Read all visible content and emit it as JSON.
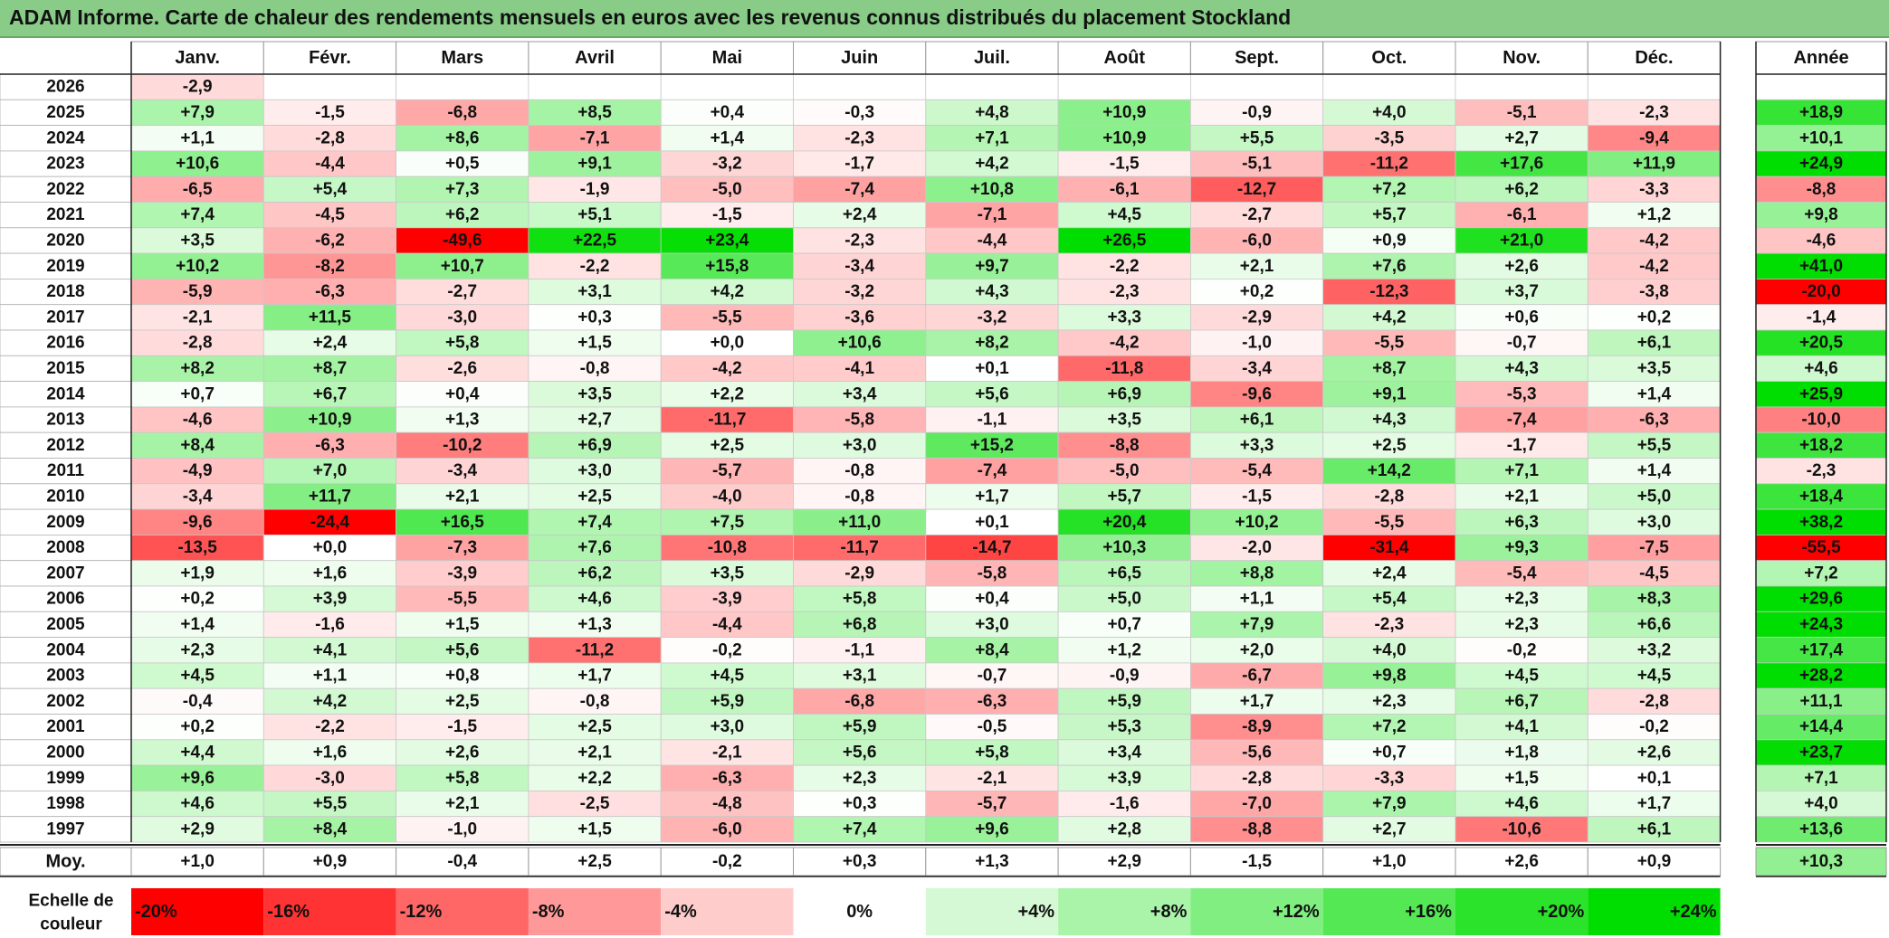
{
  "title": "ADAM Informe. Carte de chaleur des rendements mensuels en euros avec les revenus connus distribués du placement Stockland",
  "chart_data": {
    "type": "heatmap",
    "months": [
      "Janv.",
      "Févr.",
      "Mars",
      "Avril",
      "Mai",
      "Juin",
      "Juil.",
      "Août",
      "Sept.",
      "Oct.",
      "Nov.",
      "Déc."
    ],
    "annual_label": "Année",
    "rows": [
      {
        "year": "2026",
        "values": [
          -2.9,
          null,
          null,
          null,
          null,
          null,
          null,
          null,
          null,
          null,
          null,
          null
        ],
        "annual": null
      },
      {
        "year": "2025",
        "values": [
          7.9,
          -1.5,
          -6.8,
          8.5,
          0.4,
          -0.3,
          4.8,
          10.9,
          -0.9,
          4.0,
          -5.1,
          -2.3
        ],
        "annual": 18.9
      },
      {
        "year": "2024",
        "values": [
          1.1,
          -2.8,
          8.6,
          -7.1,
          1.4,
          -2.3,
          7.1,
          10.9,
          5.5,
          -3.5,
          2.7,
          -9.4
        ],
        "annual": 10.1
      },
      {
        "year": "2023",
        "values": [
          10.6,
          -4.4,
          0.5,
          9.1,
          -3.2,
          -1.7,
          4.2,
          -1.5,
          -5.1,
          -11.2,
          17.6,
          11.9
        ],
        "annual": 24.9
      },
      {
        "year": "2022",
        "values": [
          -6.5,
          5.4,
          7.3,
          -1.9,
          -5.0,
          -7.4,
          10.8,
          -6.1,
          -12.7,
          7.2,
          6.2,
          -3.3
        ],
        "annual": -8.8
      },
      {
        "year": "2021",
        "values": [
          7.4,
          -4.5,
          6.2,
          5.1,
          -1.5,
          2.4,
          -7.1,
          4.5,
          -2.7,
          5.7,
          -6.1,
          1.2
        ],
        "annual": 9.8
      },
      {
        "year": "2020",
        "values": [
          3.5,
          -6.2,
          -49.6,
          22.5,
          23.4,
          -2.3,
          -4.4,
          26.5,
          -6.0,
          0.9,
          21.0,
          -4.2
        ],
        "annual": -4.6
      },
      {
        "year": "2019",
        "values": [
          10.2,
          -8.2,
          10.7,
          -2.2,
          15.8,
          -3.4,
          9.7,
          -2.2,
          2.1,
          7.6,
          2.6,
          -4.2
        ],
        "annual": 41.0
      },
      {
        "year": "2018",
        "values": [
          -5.9,
          -6.3,
          -2.7,
          3.1,
          4.2,
          -3.2,
          4.3,
          -2.3,
          0.2,
          -12.3,
          3.7,
          -3.8
        ],
        "annual": -20.0
      },
      {
        "year": "2017",
        "values": [
          -2.1,
          11.5,
          -3.0,
          0.3,
          -5.5,
          -3.6,
          -3.2,
          3.3,
          -2.9,
          4.2,
          0.6,
          0.2
        ],
        "annual": -1.4
      },
      {
        "year": "2016",
        "values": [
          -2.8,
          2.4,
          5.8,
          1.5,
          0.0,
          10.6,
          8.2,
          -4.2,
          -1.0,
          -5.5,
          -0.7,
          6.1
        ],
        "annual": 20.5
      },
      {
        "year": "2015",
        "values": [
          8.2,
          8.7,
          -2.6,
          -0.8,
          -4.2,
          -4.1,
          0.1,
          -11.8,
          -3.4,
          8.7,
          4.3,
          3.5
        ],
        "annual": 4.6
      },
      {
        "year": "2014",
        "values": [
          0.7,
          6.7,
          0.4,
          3.5,
          2.2,
          3.4,
          5.6,
          6.9,
          -9.6,
          9.1,
          -5.3,
          1.4
        ],
        "annual": 25.9
      },
      {
        "year": "2013",
        "values": [
          -4.6,
          10.9,
          1.3,
          2.7,
          -11.7,
          -5.8,
          -1.1,
          3.5,
          6.1,
          4.3,
          -7.4,
          -6.3
        ],
        "annual": -10.0
      },
      {
        "year": "2012",
        "values": [
          8.4,
          -6.3,
          -10.2,
          6.9,
          2.5,
          3.0,
          15.2,
          -8.8,
          3.3,
          2.5,
          -1.7,
          5.5
        ],
        "annual": 18.2
      },
      {
        "year": "2011",
        "values": [
          -4.9,
          7.0,
          -3.4,
          3.0,
          -5.7,
          -0.8,
          -7.4,
          -5.0,
          -5.4,
          14.2,
          7.1,
          1.4
        ],
        "annual": -2.3
      },
      {
        "year": "2010",
        "values": [
          -3.4,
          11.7,
          2.1,
          2.5,
          -4.0,
          -0.8,
          1.7,
          5.7,
          -1.5,
          -2.8,
          2.1,
          5.0
        ],
        "annual": 18.4
      },
      {
        "year": "2009",
        "values": [
          -9.6,
          -24.4,
          16.5,
          7.4,
          7.5,
          11.0,
          0.1,
          20.4,
          10.2,
          -5.5,
          6.3,
          3.0
        ],
        "annual": 38.2
      },
      {
        "year": "2008",
        "values": [
          -13.5,
          0.0,
          -7.3,
          7.6,
          -10.8,
          -11.7,
          -14.7,
          10.3,
          -2.0,
          -31.4,
          9.3,
          -7.5
        ],
        "annual": -55.5
      },
      {
        "year": "2007",
        "values": [
          1.9,
          1.6,
          -3.9,
          6.2,
          3.5,
          -2.9,
          -5.8,
          6.5,
          8.8,
          2.4,
          -5.4,
          -4.5
        ],
        "annual": 7.2
      },
      {
        "year": "2006",
        "values": [
          0.2,
          3.9,
          -5.5,
          4.6,
          -3.9,
          5.8,
          0.4,
          5.0,
          1.1,
          5.4,
          2.3,
          8.3
        ],
        "annual": 29.6
      },
      {
        "year": "2005",
        "values": [
          1.4,
          -1.6,
          1.5,
          1.3,
          -4.4,
          6.8,
          3.0,
          0.7,
          7.9,
          -2.3,
          2.3,
          6.6
        ],
        "annual": 24.3
      },
      {
        "year": "2004",
        "values": [
          2.3,
          4.1,
          5.6,
          -11.2,
          -0.2,
          -1.1,
          8.4,
          1.2,
          2.0,
          4.0,
          -0.2,
          3.2
        ],
        "annual": 17.4
      },
      {
        "year": "2003",
        "values": [
          4.5,
          1.1,
          0.8,
          1.7,
          4.5,
          3.1,
          -0.7,
          -0.9,
          -6.7,
          9.8,
          4.5,
          4.5
        ],
        "annual": 28.2
      },
      {
        "year": "2002",
        "values": [
          -0.4,
          4.2,
          2.5,
          -0.8,
          5.9,
          -6.8,
          -6.3,
          5.9,
          1.7,
          2.3,
          6.7,
          -2.8
        ],
        "annual": 11.1
      },
      {
        "year": "2001",
        "values": [
          0.2,
          -2.2,
          -1.5,
          2.5,
          3.0,
          5.9,
          -0.5,
          5.3,
          -8.9,
          7.2,
          4.1,
          -0.2
        ],
        "annual": 14.4
      },
      {
        "year": "2000",
        "values": [
          4.4,
          1.6,
          2.6,
          2.1,
          -2.1,
          5.6,
          5.8,
          3.4,
          -5.6,
          0.7,
          1.8,
          2.6
        ],
        "annual": 23.7
      },
      {
        "year": "1999",
        "values": [
          9.6,
          -3.0,
          5.8,
          2.2,
          -6.3,
          2.3,
          -2.1,
          3.9,
          -2.8,
          -3.3,
          1.5,
          0.1
        ],
        "annual": 7.1
      },
      {
        "year": "1998",
        "values": [
          4.6,
          5.5,
          2.1,
          -2.5,
          -4.8,
          0.3,
          -5.7,
          -1.6,
          -7.0,
          7.9,
          4.6,
          1.7
        ],
        "annual": 4.0
      },
      {
        "year": "1997",
        "values": [
          2.9,
          8.4,
          -1.0,
          1.5,
          -6.0,
          7.4,
          9.6,
          2.8,
          -8.8,
          2.7,
          -10.6,
          6.1
        ],
        "annual": 13.6
      }
    ],
    "average": {
      "label": "Moy.",
      "values": [
        1.0,
        0.9,
        -0.4,
        2.5,
        -0.2,
        0.3,
        1.3,
        2.9,
        -1.5,
        1.0,
        2.6,
        0.9
      ],
      "annual": 10.3
    },
    "scale": {
      "label_line1": "Echelle de",
      "label_line2": "couleur",
      "stops": [
        {
          "label": "-20%",
          "value": -20
        },
        {
          "label": "-16%",
          "value": -16
        },
        {
          "label": "-12%",
          "value": -12
        },
        {
          "label": "-8%",
          "value": -8
        },
        {
          "label": "-4%",
          "value": -4
        },
        {
          "label": "0%",
          "value": 0
        },
        {
          "label": "+4%",
          "value": 4
        },
        {
          "label": "+8%",
          "value": 8
        },
        {
          "label": "+12%",
          "value": 12
        },
        {
          "label": "+16%",
          "value": 16
        },
        {
          "label": "+20%",
          "value": 20
        },
        {
          "label": "+24%",
          "value": 24
        }
      ]
    },
    "colors": {
      "negative": "#ff0000",
      "zero": "#ffffff",
      "positive": "#00dd00"
    }
  }
}
